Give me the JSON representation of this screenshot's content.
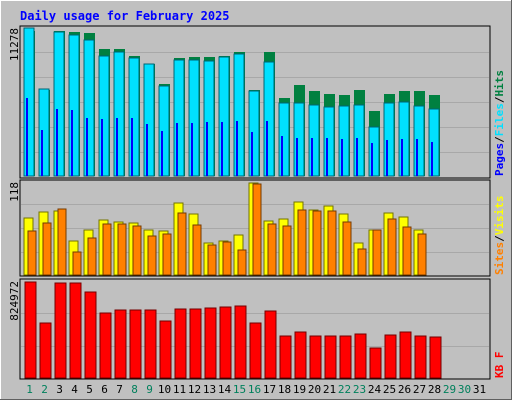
{
  "title": "Daily usage for February 2025",
  "colors": {
    "background": "#c0c0c0",
    "title": "#0000ff",
    "hits": "#008040",
    "files": "#00e0ff",
    "pages": "#0000ff",
    "visits": "#ffff00",
    "sites": "#ff8000",
    "kbytes": "#ff0000",
    "weekday_label": "#000000",
    "weekend_label": "#00805c"
  },
  "chart_data": [
    {
      "type": "bar",
      "panel": "hits-files-pages",
      "scale_max_label": "11278",
      "ymax": 11278,
      "legend": [
        "Pages",
        "Files",
        "Hits"
      ],
      "separator": "/",
      "x": [
        1,
        2,
        3,
        4,
        5,
        6,
        7,
        8,
        9,
        10,
        11,
        12,
        13,
        14,
        15,
        16,
        17,
        18,
        19,
        20,
        21,
        22,
        23,
        24,
        25,
        26,
        27,
        28
      ],
      "series": [
        {
          "name": "Hits",
          "values": [
            11000,
            6500,
            11000,
            10900,
            10800,
            9600,
            9600,
            9100,
            8500,
            7000,
            8900,
            9000,
            9000,
            9100,
            9400,
            6500,
            9400,
            5900,
            6900,
            6400,
            6200,
            6100,
            6500,
            4900,
            6200,
            6400,
            6400,
            6100
          ]
        },
        {
          "name": "Files",
          "values": [
            11200,
            6600,
            10900,
            10700,
            10300,
            9100,
            9400,
            8900,
            8500,
            6800,
            8800,
            8800,
            8700,
            9000,
            9200,
            6400,
            8600,
            5500,
            5500,
            5400,
            5200,
            5300,
            5400,
            3700,
            5500,
            5600,
            5300,
            5100
          ]
        },
        {
          "name": "Pages",
          "values": [
            5900,
            3500,
            5100,
            5000,
            4400,
            4300,
            4400,
            4400,
            3900,
            3400,
            4000,
            4000,
            4100,
            4100,
            4200,
            3300,
            4200,
            3000,
            2900,
            2900,
            2900,
            2800,
            2900,
            2500,
            2700,
            2800,
            2800,
            2600
          ]
        }
      ]
    },
    {
      "type": "bar",
      "panel": "visits-sites",
      "scale_max_label": "118",
      "ymax": 118,
      "legend": [
        "Sites",
        "Visits"
      ],
      "separator": "/",
      "x": [
        1,
        2,
        3,
        4,
        5,
        6,
        7,
        8,
        9,
        10,
        11,
        12,
        13,
        14,
        15,
        16,
        17,
        18,
        19,
        20,
        21,
        22,
        23,
        24,
        25,
        26,
        27,
        28
      ],
      "series": [
        {
          "name": "Visits",
          "values": [
            72,
            79,
            80,
            43,
            56,
            69,
            66,
            65,
            56,
            55,
            91,
            76,
            40,
            43,
            50,
            116,
            68,
            70,
            92,
            81,
            87,
            77,
            40,
            56,
            78,
            73,
            57,
            0
          ]
        },
        {
          "name": "Sites",
          "values": [
            55,
            65,
            83,
            29,
            47,
            64,
            64,
            62,
            49,
            51,
            78,
            63,
            38,
            41,
            32,
            114,
            64,
            62,
            82,
            80,
            80,
            67,
            33,
            56,
            70,
            60,
            52,
            0
          ]
        }
      ]
    },
    {
      "type": "bar",
      "panel": "kbytes",
      "scale_max_label": "824972",
      "ymax": 824972,
      "legend": [
        "KB F"
      ],
      "x": [
        1,
        2,
        3,
        4,
        5,
        6,
        7,
        8,
        9,
        10,
        11,
        12,
        13,
        14,
        15,
        16,
        17,
        18,
        19,
        20,
        21,
        22,
        23,
        24,
        25,
        26,
        27,
        28
      ],
      "series": [
        {
          "name": "KB F",
          "values": [
            810000,
            460000,
            800000,
            800000,
            720000,
            550000,
            570000,
            570000,
            570000,
            480000,
            580000,
            585000,
            590000,
            595000,
            610000,
            460000,
            560000,
            355000,
            390000,
            350000,
            350000,
            350000,
            370000,
            250000,
            365000,
            390000,
            350000,
            345000
          ]
        }
      ]
    }
  ],
  "day_labels": [
    "1",
    "2",
    "3",
    "4",
    "5",
    "6",
    "7",
    "8",
    "9",
    "10",
    "11",
    "12",
    "13",
    "14",
    "15",
    "16",
    "17",
    "18",
    "19",
    "20",
    "21",
    "22",
    "23",
    "24",
    "25",
    "26",
    "27",
    "28",
    "29",
    "30",
    "31"
  ],
  "weekend_days": [
    1,
    2,
    8,
    9,
    15,
    16,
    22,
    23,
    29,
    30
  ]
}
